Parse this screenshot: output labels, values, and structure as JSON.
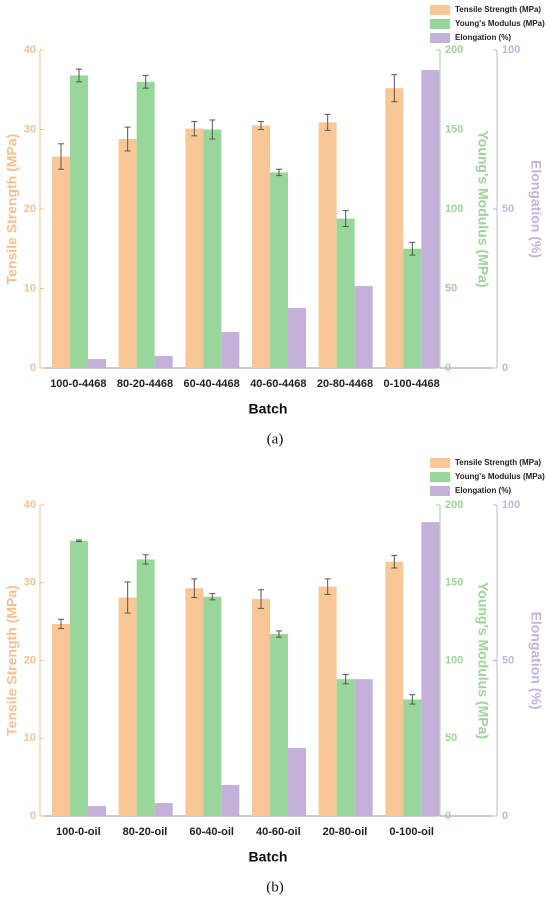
{
  "chart_data": [
    {
      "type": "bar",
      "label": "(a)",
      "x_label": "Batch",
      "y_label": "Tensile Strength (MPa)",
      "y2_label": "Young's Modulus (MPa)",
      "y3_label": "Elongation (%)",
      "categories": [
        "100-0-4468",
        "80-20-4468",
        "60-40-4468",
        "40-60-4468",
        "20-80-4468",
        "0-100-4468"
      ],
      "series": [
        {
          "name": "Tensile Strength (MPa)",
          "color": "#f9c795",
          "axis": "y",
          "values": [
            26.6,
            28.8,
            30.1,
            30.5,
            30.9,
            35.2
          ],
          "errors": [
            1.6,
            1.5,
            0.9,
            0.5,
            1.0,
            1.7
          ]
        },
        {
          "name": "Young's Modulus (MPa)",
          "color": "#98d69a",
          "axis": "y2",
          "values": [
            184,
            180,
            150,
            123,
            94,
            75
          ],
          "errors": [
            4,
            4,
            6,
            2,
            5,
            4
          ]
        },
        {
          "name": "Elongation (%)",
          "color": "#c3b1db",
          "axis": "y3",
          "values": [
            2.8,
            3.8,
            11.3,
            18.9,
            25.8,
            93.7
          ]
        }
      ],
      "ylim": [
        0,
        40
      ],
      "yticks": [
        0,
        10,
        20,
        30,
        40
      ],
      "y_color": "#f6c08f",
      "y2lim": [
        0,
        200
      ],
      "y2ticks": [
        0,
        50,
        100,
        150,
        200
      ],
      "y2_color": "#9ed49a",
      "y3lim": [
        0,
        100
      ],
      "y3ticks": [
        0,
        50,
        100
      ],
      "y3_color": "#c4b3dc",
      "legend": "upper right"
    },
    {
      "type": "bar",
      "label": "(b)",
      "x_label": "Batch",
      "y_label": "Tensile Strength (MPa)",
      "y2_label": "Young's Modulus (MPa)",
      "y3_label": "Elongation (%)",
      "categories": [
        "100-0-oil",
        "80-20-oil",
        "60-40-oil",
        "40-60-oil",
        "20-80-oil",
        "0-100-oil"
      ],
      "series": [
        {
          "name": "Tensile Strength (MPa)",
          "color": "#f9c795",
          "axis": "y",
          "values": [
            24.7,
            28.1,
            29.3,
            27.9,
            29.5,
            32.7
          ],
          "errors": [
            0.6,
            2.0,
            1.2,
            1.2,
            1.0,
            0.8
          ]
        },
        {
          "name": "Young's Modulus (MPa)",
          "color": "#98d69a",
          "axis": "y2",
          "values": [
            177,
            165,
            141,
            117,
            88,
            75
          ],
          "errors": [
            0.5,
            3,
            2,
            2,
            3,
            3
          ]
        },
        {
          "name": "Elongation (%)",
          "color": "#c3b1db",
          "axis": "y3",
          "values": [
            3.2,
            4.2,
            10,
            21.9,
            44,
            94.5
          ]
        }
      ],
      "ylim": [
        0,
        40
      ],
      "yticks": [
        0,
        10,
        20,
        30,
        40
      ],
      "y_color": "#f6c08f",
      "y2lim": [
        0,
        200
      ],
      "y2ticks": [
        0,
        50,
        100,
        150,
        200
      ],
      "y2_color": "#9ed49a",
      "y3lim": [
        0,
        100
      ],
      "y3ticks": [
        0,
        50,
        100
      ],
      "y3_color": "#c4b3dc",
      "legend": "upper right"
    }
  ]
}
